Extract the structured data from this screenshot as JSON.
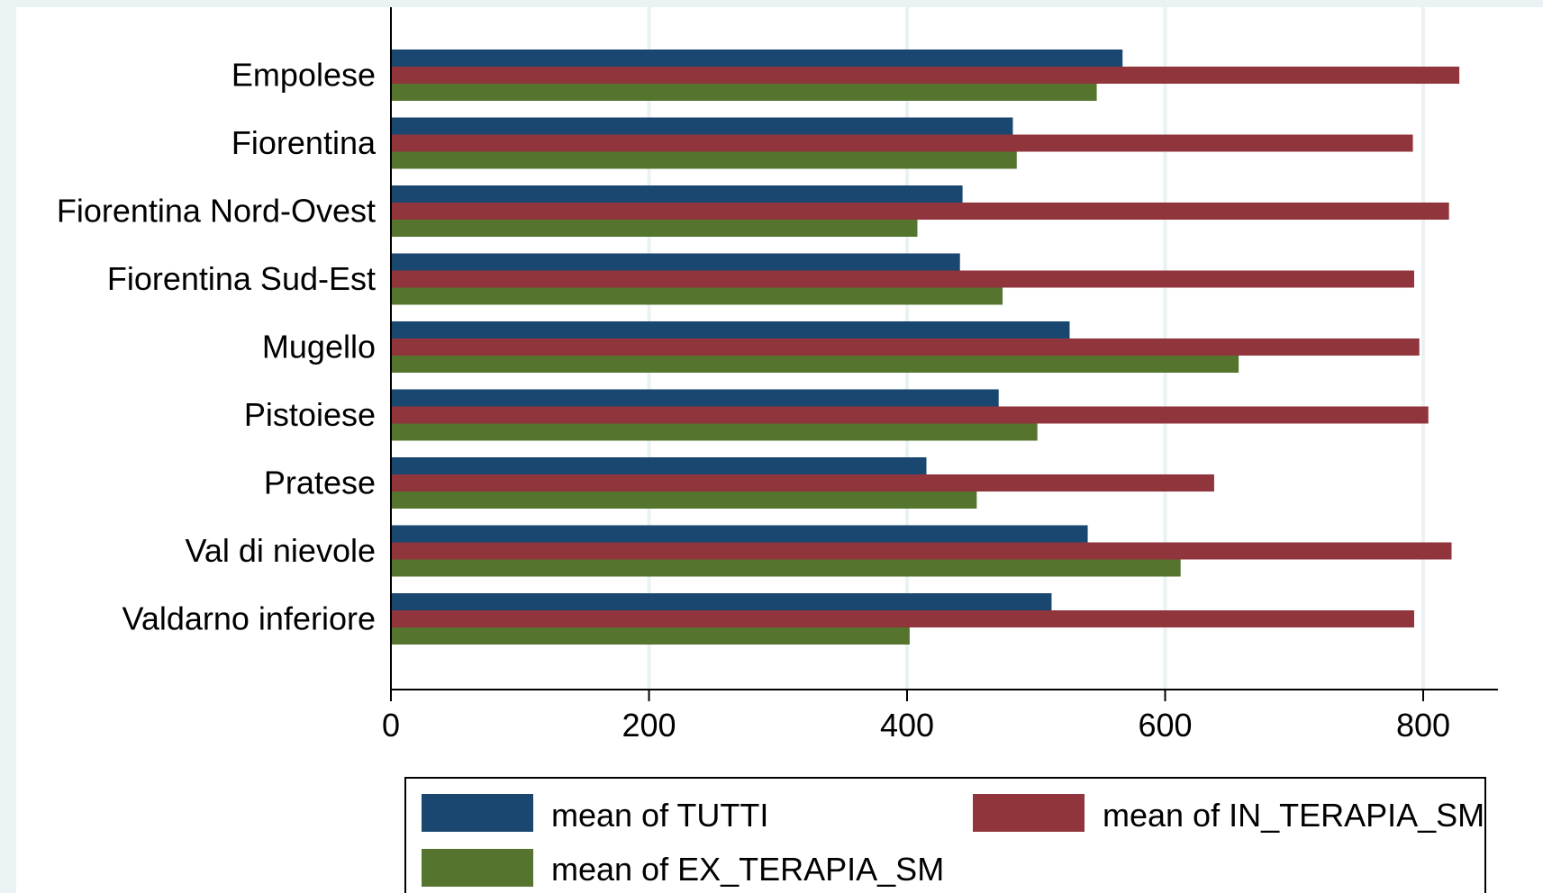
{
  "chart_data": {
    "type": "bar",
    "orientation": "horizontal",
    "categories": [
      "Empolese",
      "Fiorentina",
      "Fiorentina Nord-Ovest",
      "Fiorentina Sud-Est",
      "Mugello",
      "Pistoiese",
      "Pratese",
      "Val di nievole",
      "Valdarno inferiore"
    ],
    "series": [
      {
        "name": "mean of TUTTI",
        "color": "#1a476f",
        "values": [
          567,
          482,
          443,
          441,
          526,
          471,
          415,
          540,
          512
        ]
      },
      {
        "name": "mean of IN_TERAPIA_SM",
        "color": "#90353b",
        "values": [
          828,
          792,
          820,
          793,
          797,
          804,
          638,
          822,
          793
        ]
      },
      {
        "name": "mean of EX_TERAPIA_SM",
        "color": "#55752f",
        "values": [
          547,
          485,
          408,
          474,
          657,
          501,
          454,
          612,
          402
        ]
      }
    ],
    "xaxis": {
      "ticks": [
        0,
        200,
        400,
        600,
        800
      ],
      "tick_labels": [
        "0",
        "200",
        "400",
        "600",
        "800"
      ],
      "range": [
        0,
        860
      ]
    },
    "title": "",
    "xlabel": "",
    "ylabel": "",
    "grid": true,
    "legend": "bottom",
    "colors": {
      "background": "#eaf2f3",
      "plot_background": "#ffffff",
      "gridline": "#eaf2f3",
      "axis": "#000000"
    }
  }
}
